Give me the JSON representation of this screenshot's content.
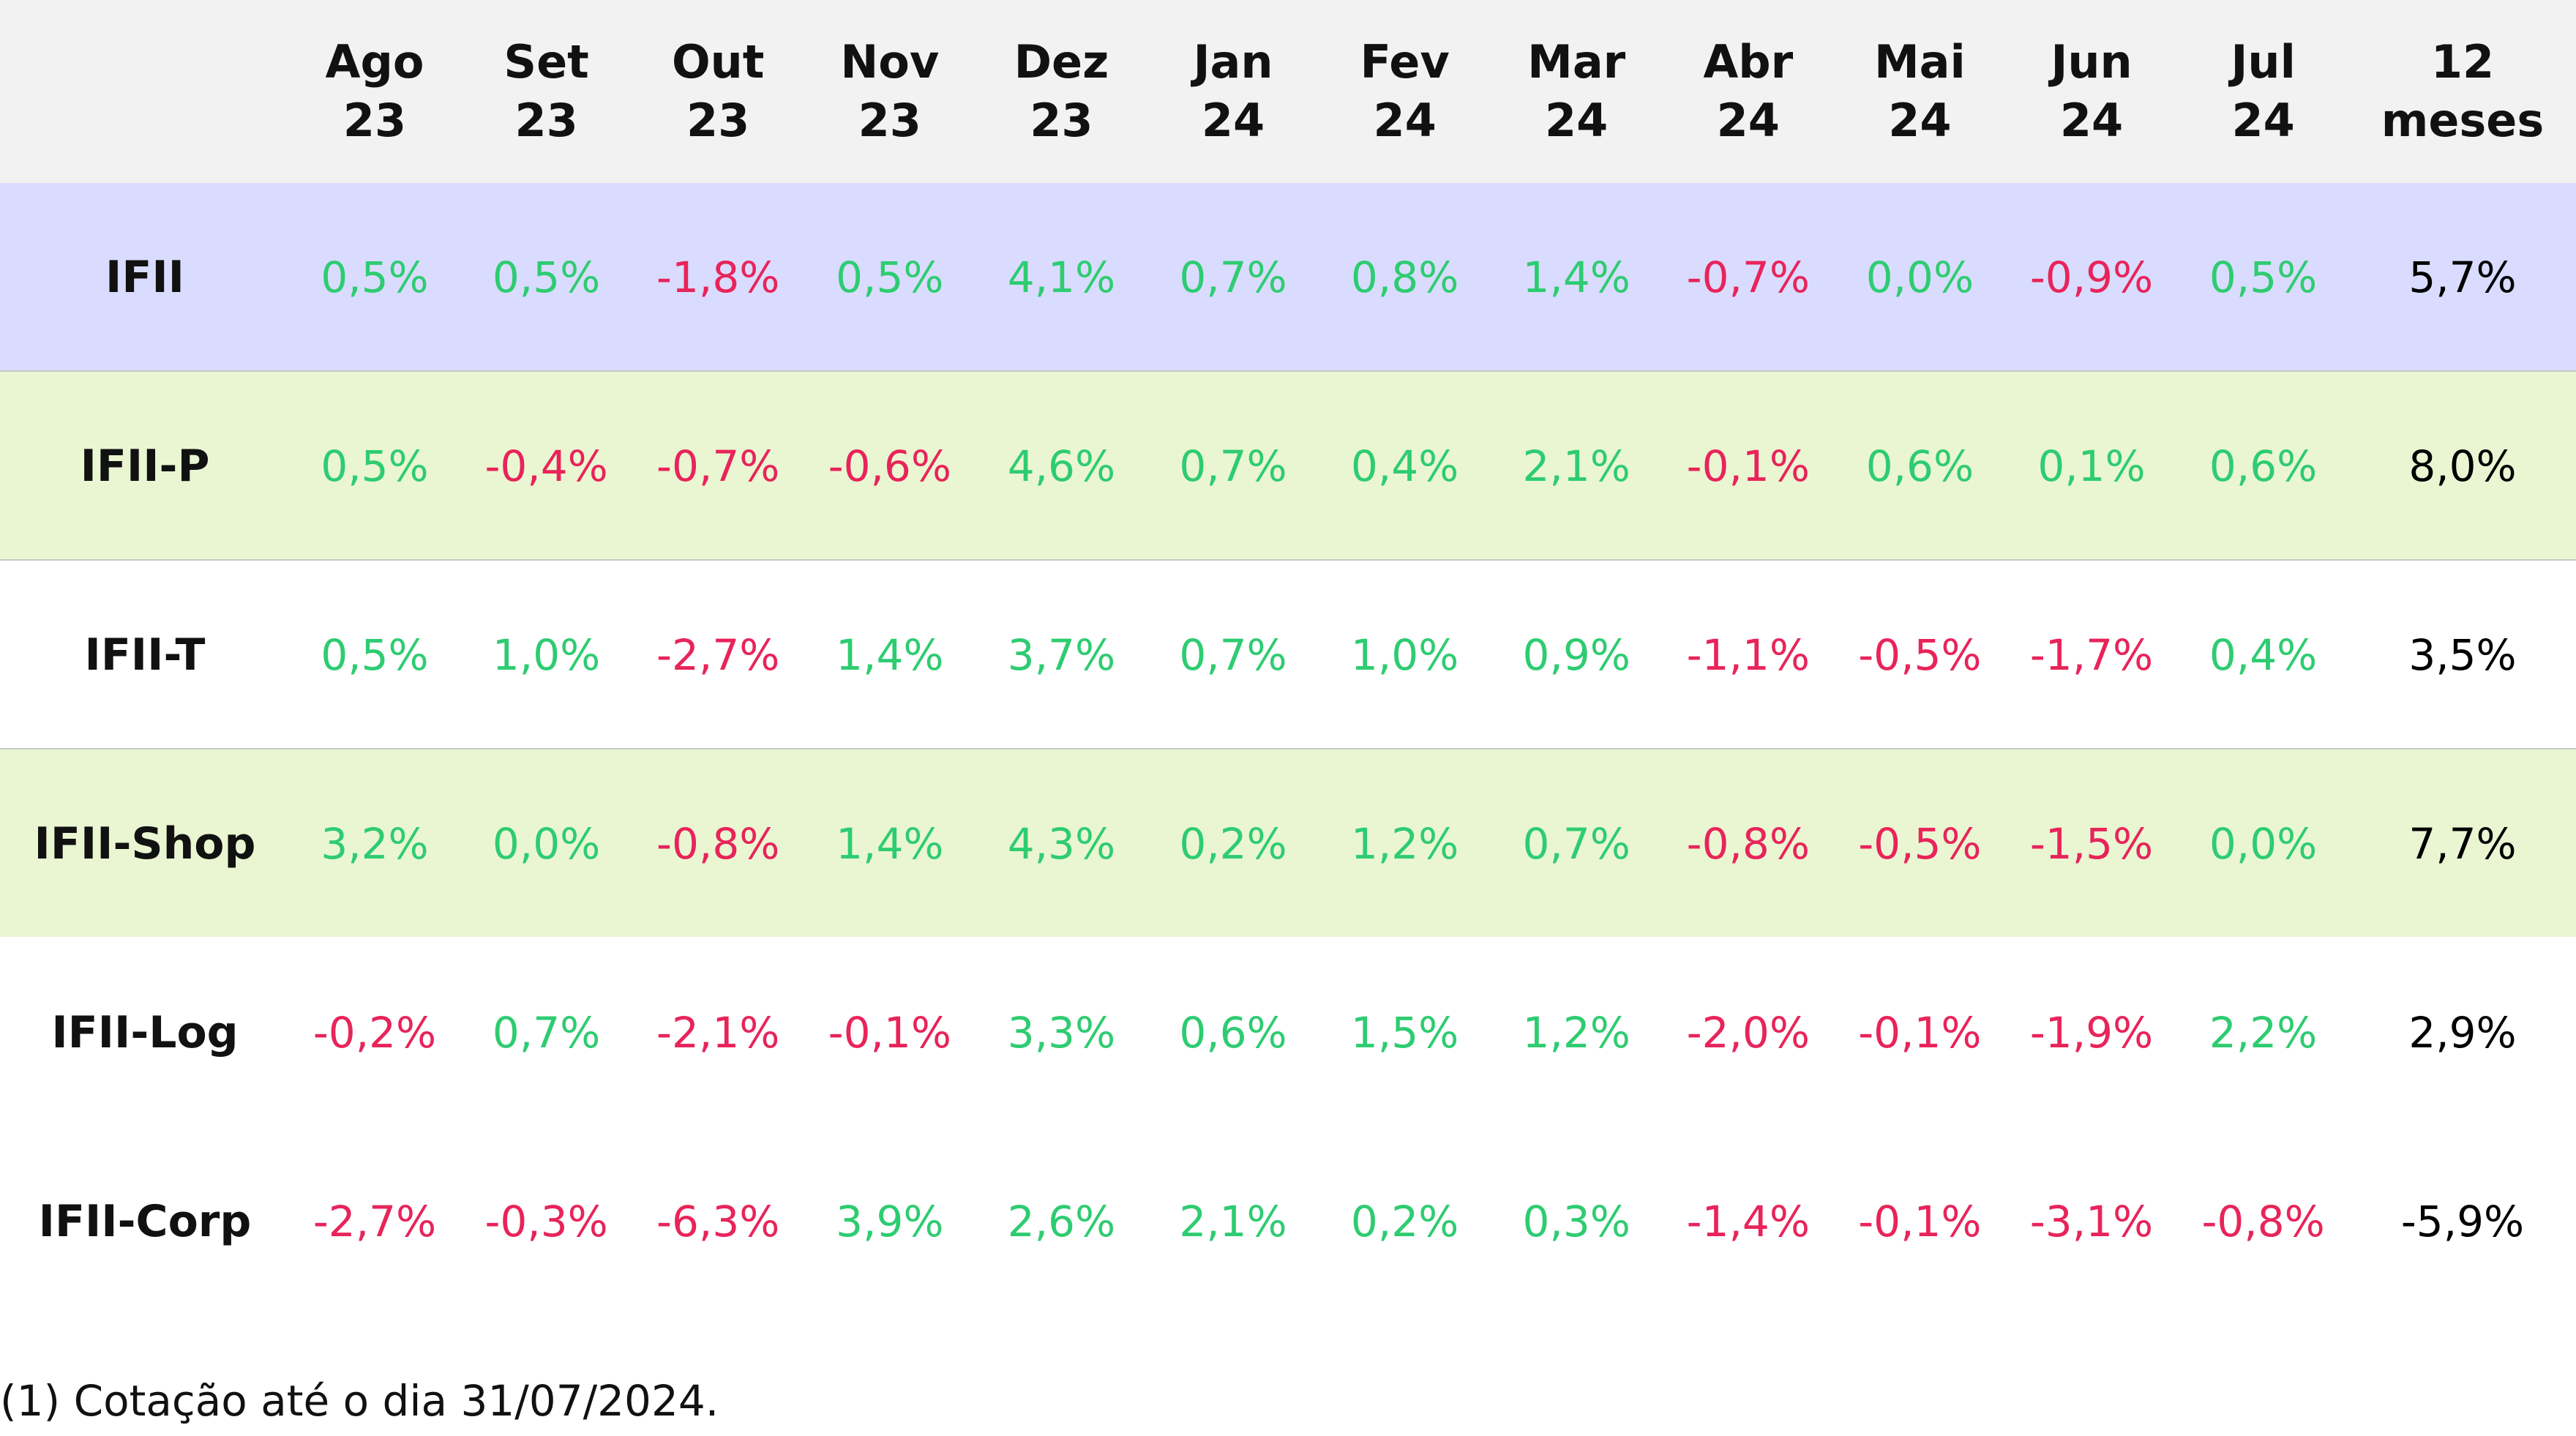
{
  "table": {
    "header": [
      [
        "Ago",
        "23"
      ],
      [
        "Set",
        "23"
      ],
      [
        "Out",
        "23"
      ],
      [
        "Nov",
        "23"
      ],
      [
        "Dez",
        "23"
      ],
      [
        "Jan",
        "24"
      ],
      [
        "Fev",
        "24"
      ],
      [
        "Mar",
        "24"
      ],
      [
        "Abr",
        "24"
      ],
      [
        "Mai",
        "24"
      ],
      [
        "Jun",
        "24"
      ],
      [
        "Jul",
        "24"
      ],
      [
        "12",
        "meses"
      ]
    ],
    "header_background": "#f2f2f2",
    "positive_color": "#2ecc71",
    "negative_color": "#e8245a",
    "total_color": "#000000",
    "rows": [
      {
        "name": "IFII",
        "background": "#d9dcff",
        "values": [
          "0,5%",
          "0,5%",
          "-1,8%",
          "0,5%",
          "4,1%",
          "0,7%",
          "0,8%",
          "1,4%",
          "-0,7%",
          "0,0%",
          "-0,9%",
          "0,5%",
          "5,7%"
        ]
      },
      {
        "name": "IFII-P",
        "background": "#eaf6d2",
        "values": [
          "0,5%",
          "-0,4%",
          "-0,7%",
          "-0,6%",
          "4,6%",
          "0,7%",
          "0,4%",
          "2,1%",
          "-0,1%",
          "0,6%",
          "0,1%",
          "0,6%",
          "8,0%"
        ]
      },
      {
        "name": "IFII-T",
        "background": "#ffffff",
        "values": [
          "0,5%",
          "1,0%",
          "-2,7%",
          "1,4%",
          "3,7%",
          "0,7%",
          "1,0%",
          "0,9%",
          "-1,1%",
          "-0,5%",
          "-1,7%",
          "0,4%",
          "3,5%"
        ]
      },
      {
        "name": "IFII-Shop",
        "background": "#eaf6d2",
        "values": [
          "3,2%",
          "0,0%",
          "-0,8%",
          "1,4%",
          "4,3%",
          "0,2%",
          "1,2%",
          "0,7%",
          "-0,8%",
          "-0,5%",
          "-1,5%",
          "0,0%",
          "7,7%"
        ]
      },
      {
        "name": "IFII-Log",
        "background": "#ffffff",
        "values": [
          "-0,2%",
          "0,7%",
          "-2,1%",
          "-0,1%",
          "3,3%",
          "0,6%",
          "1,5%",
          "1,2%",
          "-2,0%",
          "-0,1%",
          "-1,9%",
          "2,2%",
          "2,9%"
        ]
      },
      {
        "name": "IFII-Corp",
        "background": "#ffffff",
        "values": [
          "-2,7%",
          "-0,3%",
          "-6,3%",
          "3,9%",
          "2,6%",
          "2,1%",
          "0,2%",
          "0,3%",
          "-1,4%",
          "-0,1%",
          "-3,1%",
          "-0,8%",
          "-5,9%"
        ]
      }
    ]
  },
  "footnote": "(1) Cotação até o dia 31/07/2024."
}
